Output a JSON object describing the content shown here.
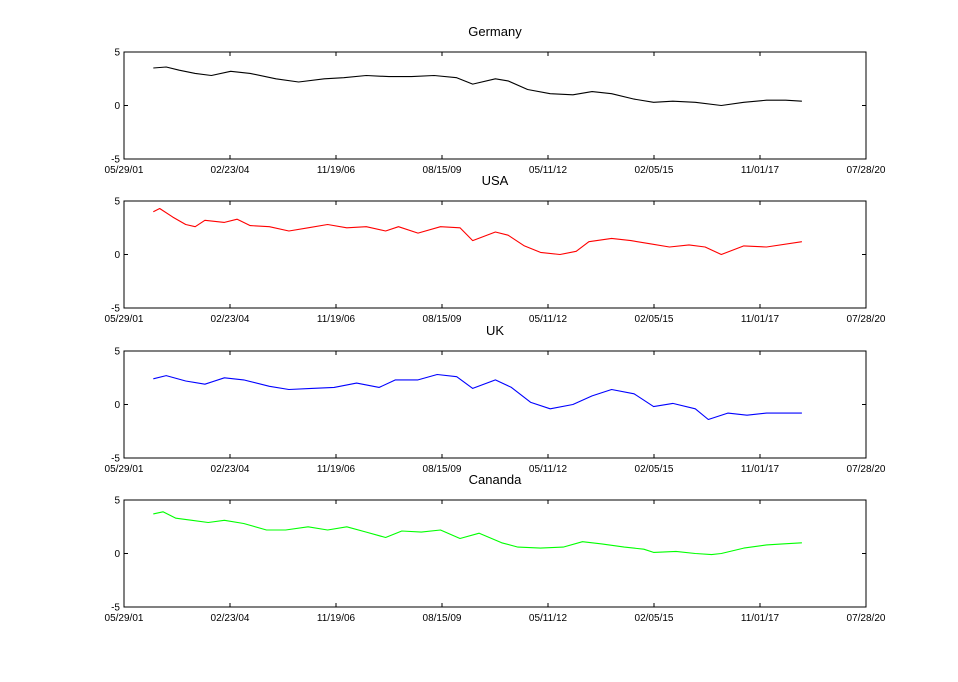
{
  "chart_data": [
    {
      "type": "line",
      "title": "Germany",
      "color": "#000000",
      "xlim": [
        "2001-05-29",
        "2020-07-28"
      ],
      "ylim": [
        -5,
        5
      ],
      "x_ticks": [
        "05/29/01",
        "02/23/04",
        "11/19/06",
        "08/15/09",
        "05/11/12",
        "02/05/15",
        "11/01/17",
        "07/28/20"
      ],
      "y_ticks": [
        "-5",
        "0",
        "5"
      ],
      "grid": false,
      "series": [
        {
          "x": [
            "2002-03-01",
            "2002-07-01",
            "2002-11-01",
            "2003-04-01",
            "2003-09-01",
            "2004-03-01",
            "2004-09-01",
            "2005-05-01",
            "2005-12-01",
            "2006-08-01",
            "2007-02-01",
            "2007-09-01",
            "2008-04-01",
            "2008-11-01",
            "2009-06-01",
            "2010-01-01",
            "2010-06-01",
            "2011-01-01",
            "2011-05-01",
            "2011-11-01",
            "2012-06-01",
            "2013-01-01",
            "2013-07-01",
            "2014-01-01",
            "2014-08-01",
            "2015-02-01",
            "2015-08-01",
            "2016-03-01",
            "2016-11-01",
            "2017-06-01",
            "2018-01-01",
            "2018-07-01",
            "2018-12-01"
          ],
          "values": [
            3.5,
            3.6,
            3.3,
            3.0,
            2.8,
            3.2,
            3.0,
            2.5,
            2.2,
            2.5,
            2.6,
            2.8,
            2.7,
            2.7,
            2.8,
            2.6,
            2.0,
            2.5,
            2.3,
            1.5,
            1.1,
            1.0,
            1.3,
            1.1,
            0.6,
            0.3,
            0.4,
            0.3,
            0.0,
            0.3,
            0.5,
            0.5,
            0.4
          ]
        }
      ]
    },
    {
      "type": "line",
      "title": "USA",
      "color": "#ff0000",
      "xlim": [
        "2001-05-29",
        "2020-07-28"
      ],
      "ylim": [
        -5,
        5
      ],
      "x_ticks": [
        "05/29/01",
        "02/23/04",
        "11/19/06",
        "08/15/09",
        "05/11/12",
        "02/05/15",
        "11/01/17",
        "07/28/20"
      ],
      "y_ticks": [
        "-5",
        "0",
        "5"
      ],
      "grid": false,
      "series": [
        {
          "x": [
            "2002-03-01",
            "2002-05-01",
            "2002-09-01",
            "2003-01-01",
            "2003-04-01",
            "2003-07-01",
            "2004-01-01",
            "2004-05-01",
            "2004-09-01",
            "2005-03-01",
            "2005-09-01",
            "2006-03-01",
            "2006-09-01",
            "2007-03-01",
            "2007-09-01",
            "2008-03-01",
            "2008-07-01",
            "2009-01-01",
            "2009-08-01",
            "2010-02-01",
            "2010-06-01",
            "2011-01-01",
            "2011-05-01",
            "2011-10-01",
            "2012-03-01",
            "2012-09-01",
            "2013-02-01",
            "2013-06-01",
            "2014-01-01",
            "2014-07-01",
            "2015-01-01",
            "2015-07-01",
            "2016-01-01",
            "2016-06-01",
            "2016-11-01",
            "2017-06-01",
            "2018-01-01",
            "2018-12-01"
          ],
          "values": [
            4.0,
            4.3,
            3.5,
            2.8,
            2.6,
            3.2,
            3.0,
            3.3,
            2.7,
            2.6,
            2.2,
            2.5,
            2.8,
            2.5,
            2.6,
            2.2,
            2.6,
            2.0,
            2.6,
            2.5,
            1.3,
            2.1,
            1.8,
            0.8,
            0.2,
            0.0,
            0.3,
            1.2,
            1.5,
            1.3,
            1.0,
            0.7,
            0.9,
            0.7,
            0.0,
            0.8,
            0.7,
            1.2
          ]
        }
      ]
    },
    {
      "type": "line",
      "title": "UK",
      "color": "#0000ff",
      "xlim": [
        "2001-05-29",
        "2020-07-28"
      ],
      "ylim": [
        -5,
        5
      ],
      "x_ticks": [
        "05/29/01",
        "02/23/04",
        "11/19/06",
        "08/15/09",
        "05/11/12",
        "02/05/15",
        "11/01/17",
        "07/28/20"
      ],
      "y_ticks": [
        "-5",
        "0",
        "5"
      ],
      "grid": false,
      "series": [
        {
          "x": [
            "2002-03-01",
            "2002-07-01",
            "2003-01-01",
            "2003-07-01",
            "2004-01-01",
            "2004-07-01",
            "2005-03-01",
            "2005-09-01",
            "2006-04-01",
            "2006-11-01",
            "2007-06-01",
            "2008-01-01",
            "2008-06-01",
            "2009-01-01",
            "2009-07-01",
            "2010-01-01",
            "2010-06-01",
            "2011-01-01",
            "2011-06-01",
            "2011-12-01",
            "2012-06-01",
            "2013-01-01",
            "2013-07-01",
            "2014-01-01",
            "2014-08-01",
            "2015-02-01",
            "2015-08-01",
            "2016-03-01",
            "2016-07-01",
            "2017-01-01",
            "2017-07-01",
            "2018-01-01",
            "2018-12-01"
          ],
          "values": [
            2.4,
            2.7,
            2.2,
            1.9,
            2.5,
            2.3,
            1.7,
            1.4,
            1.5,
            1.6,
            2.0,
            1.6,
            2.3,
            2.3,
            2.8,
            2.6,
            1.5,
            2.3,
            1.6,
            0.2,
            -0.4,
            0.0,
            0.8,
            1.4,
            1.0,
            -0.2,
            0.1,
            -0.4,
            -1.4,
            -0.8,
            -1.0,
            -0.8,
            -0.8
          ]
        }
      ]
    },
    {
      "type": "line",
      "title": "Cananda",
      "color": "#00ff00",
      "xlim": [
        "2001-05-29",
        "2020-07-28"
      ],
      "ylim": [
        -5,
        5
      ],
      "x_ticks": [
        "05/29/01",
        "02/23/04",
        "11/19/06",
        "08/15/09",
        "05/11/12",
        "02/05/15",
        "11/01/17",
        "07/28/20"
      ],
      "y_ticks": [
        "-5",
        "0",
        "5"
      ],
      "grid": false,
      "series": [
        {
          "x": [
            "2002-03-01",
            "2002-06-01",
            "2002-10-01",
            "2003-03-01",
            "2003-08-01",
            "2004-01-01",
            "2004-07-01",
            "2005-02-01",
            "2005-08-01",
            "2006-03-01",
            "2006-09-01",
            "2007-03-01",
            "2007-09-01",
            "2008-03-01",
            "2008-08-01",
            "2009-02-01",
            "2009-08-01",
            "2010-02-01",
            "2010-08-01",
            "2011-03-01",
            "2011-08-01",
            "2012-03-01",
            "2012-10-01",
            "2013-04-01",
            "2013-10-01",
            "2014-05-01",
            "2014-11-01",
            "2015-02-01",
            "2015-09-01",
            "2016-03-01",
            "2016-08-01",
            "2016-11-01",
            "2017-06-01",
            "2018-01-01",
            "2018-06-01",
            "2018-12-01"
          ],
          "values": [
            3.7,
            3.9,
            3.3,
            3.1,
            2.9,
            3.1,
            2.8,
            2.2,
            2.2,
            2.5,
            2.2,
            2.5,
            2.0,
            1.5,
            2.1,
            2.0,
            2.2,
            1.4,
            1.9,
            1.0,
            0.6,
            0.5,
            0.6,
            1.1,
            0.9,
            0.6,
            0.4,
            0.1,
            0.2,
            0.0,
            -0.1,
            0.0,
            0.5,
            0.8,
            0.9,
            1.0
          ]
        }
      ]
    }
  ]
}
